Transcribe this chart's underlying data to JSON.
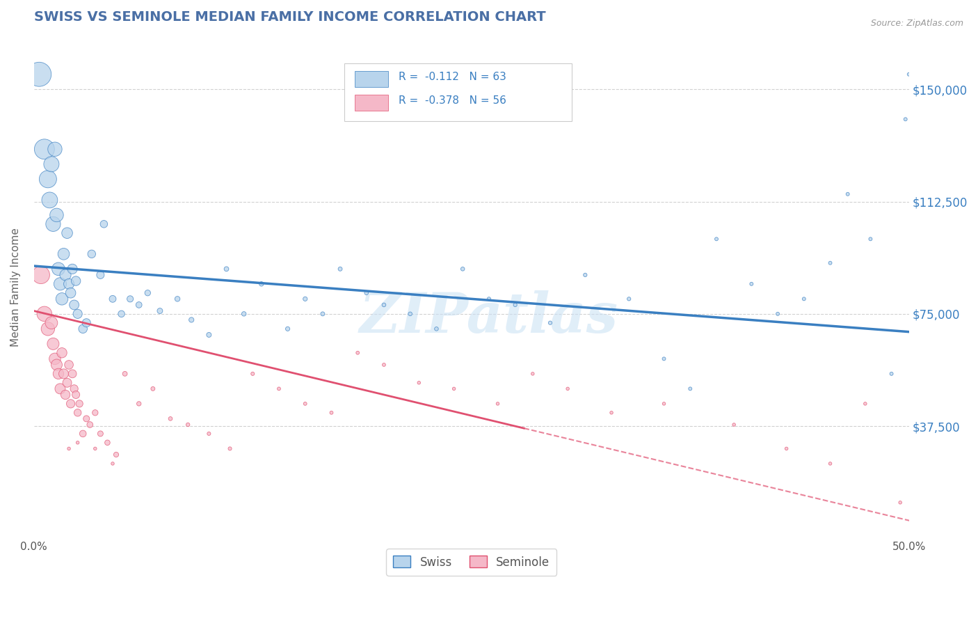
{
  "title": "SWISS VS SEMINOLE MEDIAN FAMILY INCOME CORRELATION CHART",
  "source": "Source: ZipAtlas.com",
  "ylabel": "Median Family Income",
  "y_tick_labels": [
    "$37,500",
    "$75,000",
    "$112,500",
    "$150,000"
  ],
  "y_tick_values": [
    37500,
    75000,
    112500,
    150000
  ],
  "xlim": [
    0.0,
    0.5
  ],
  "ylim": [
    0,
    168000
  ],
  "swiss_R": -0.112,
  "swiss_N": 63,
  "seminole_R": -0.378,
  "seminole_N": 56,
  "swiss_color": "#b8d4ec",
  "seminole_color": "#f5b8c8",
  "swiss_line_color": "#3a7fc1",
  "seminole_line_color": "#e05070",
  "watermark": "ZIPatlas",
  "title_color": "#4a6fa5",
  "grid_color": "#cccccc",
  "background_color": "#ffffff",
  "swiss_intercept": 91000,
  "swiss_slope": -22000,
  "seminole_intercept": 76000,
  "seminole_slope": -140000,
  "swiss_x": [
    0.003,
    0.006,
    0.008,
    0.009,
    0.01,
    0.011,
    0.012,
    0.013,
    0.014,
    0.015,
    0.016,
    0.017,
    0.018,
    0.019,
    0.02,
    0.021,
    0.022,
    0.023,
    0.024,
    0.025,
    0.028,
    0.03,
    0.033,
    0.038,
    0.04,
    0.045,
    0.05,
    0.055,
    0.06,
    0.065,
    0.072,
    0.082,
    0.09,
    0.1,
    0.11,
    0.12,
    0.13,
    0.145,
    0.155,
    0.165,
    0.175,
    0.19,
    0.2,
    0.215,
    0.23,
    0.245,
    0.26,
    0.275,
    0.295,
    0.315,
    0.34,
    0.36,
    0.375,
    0.39,
    0.41,
    0.425,
    0.44,
    0.455,
    0.465,
    0.478,
    0.49,
    0.498,
    0.5
  ],
  "swiss_y": [
    155000,
    130000,
    120000,
    113000,
    125000,
    105000,
    130000,
    108000,
    90000,
    85000,
    80000,
    95000,
    88000,
    102000,
    85000,
    82000,
    90000,
    78000,
    86000,
    75000,
    70000,
    72000,
    95000,
    88000,
    105000,
    80000,
    75000,
    80000,
    78000,
    82000,
    76000,
    80000,
    73000,
    68000,
    90000,
    75000,
    85000,
    70000,
    80000,
    75000,
    90000,
    82000,
    78000,
    75000,
    70000,
    90000,
    80000,
    78000,
    72000,
    88000,
    80000,
    60000,
    50000,
    100000,
    85000,
    75000,
    80000,
    92000,
    115000,
    100000,
    55000,
    140000,
    155000
  ],
  "swiss_sizes": [
    350,
    240,
    180,
    150,
    140,
    130,
    120,
    110,
    100,
    95,
    88,
    80,
    75,
    70,
    65,
    62,
    58,
    55,
    52,
    50,
    45,
    42,
    38,
    35,
    32,
    28,
    26,
    24,
    22,
    20,
    18,
    16,
    15,
    14,
    13,
    12,
    12,
    11,
    11,
    10,
    10,
    9,
    9,
    9,
    9,
    9,
    8,
    8,
    8,
    8,
    8,
    7,
    7,
    7,
    7,
    7,
    7,
    7,
    7,
    7,
    7,
    7,
    7
  ],
  "seminole_x": [
    0.004,
    0.006,
    0.008,
    0.01,
    0.011,
    0.012,
    0.013,
    0.014,
    0.015,
    0.016,
    0.017,
    0.018,
    0.019,
    0.02,
    0.021,
    0.022,
    0.023,
    0.024,
    0.025,
    0.026,
    0.028,
    0.03,
    0.032,
    0.035,
    0.038,
    0.042,
    0.047,
    0.052,
    0.06,
    0.068,
    0.078,
    0.088,
    0.1,
    0.112,
    0.125,
    0.14,
    0.155,
    0.17,
    0.185,
    0.2,
    0.22,
    0.24,
    0.265,
    0.285,
    0.305,
    0.33,
    0.36,
    0.4,
    0.43,
    0.455,
    0.475,
    0.495,
    0.02,
    0.025,
    0.035,
    0.045
  ],
  "seminole_y": [
    88000,
    75000,
    70000,
    72000,
    65000,
    60000,
    58000,
    55000,
    50000,
    62000,
    55000,
    48000,
    52000,
    58000,
    45000,
    55000,
    50000,
    48000,
    42000,
    45000,
    35000,
    40000,
    38000,
    42000,
    35000,
    32000,
    28000,
    55000,
    45000,
    50000,
    40000,
    38000,
    35000,
    30000,
    55000,
    50000,
    45000,
    42000,
    62000,
    58000,
    52000,
    50000,
    45000,
    55000,
    50000,
    42000,
    45000,
    38000,
    30000,
    25000,
    45000,
    12000,
    30000,
    32000,
    30000,
    25000
  ],
  "seminole_sizes": [
    220,
    160,
    130,
    110,
    100,
    95,
    88,
    82,
    78,
    72,
    68,
    62,
    58,
    55,
    52,
    48,
    44,
    42,
    38,
    36,
    32,
    28,
    26,
    24,
    22,
    20,
    18,
    16,
    14,
    12,
    11,
    10,
    9,
    9,
    9,
    8,
    8,
    8,
    8,
    8,
    7,
    7,
    7,
    7,
    7,
    7,
    7,
    7,
    7,
    7,
    7,
    7,
    7,
    7,
    7,
    7
  ]
}
